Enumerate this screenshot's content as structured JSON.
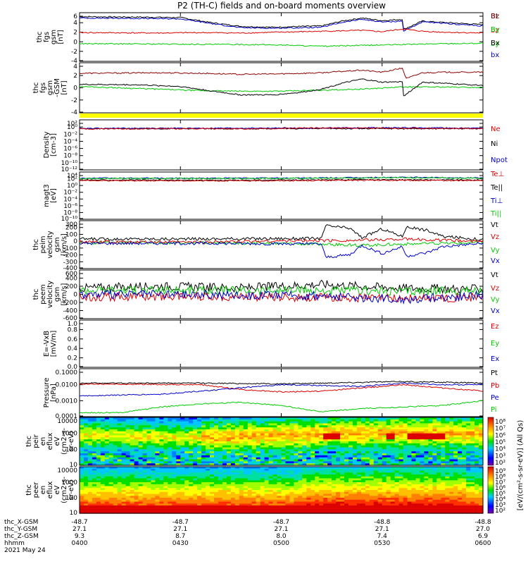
{
  "title": "P2 (TH-C) fields and on-board moments overview",
  "chart_data": [
    {
      "type": "line",
      "ylabel": [
        "thc",
        "fgs",
        "gsm",
        "[nT]"
      ],
      "yticks": [
        "6",
        "4",
        "2",
        "0",
        "-2",
        "-4"
      ],
      "ylim": [
        -4.5,
        6.5
      ],
      "legend": [
        {
          "name": "Bt",
          "color": "#000000"
        },
        {
          "name": "bz",
          "color": "#dd0000"
        },
        {
          "name": "by",
          "color": "#00cc00"
        },
        {
          "name": "bx",
          "color": "#0000cc"
        }
      ],
      "series": [
        {
          "name": "Bt",
          "color": "#000000",
          "t": [
            0,
            0.15,
            0.25,
            0.33,
            0.4,
            0.48,
            0.55,
            0.6,
            0.65,
            0.7,
            0.75,
            0.8,
            0.8,
            0.85,
            0.9,
            1.0
          ],
          "y": [
            5.6,
            5.5,
            5.4,
            4.2,
            3.4,
            3.2,
            3.4,
            3.5,
            4.6,
            5.3,
            4.7,
            5.0,
            2.6,
            4.6,
            4.3,
            3.8
          ]
        },
        {
          "name": "bx",
          "color": "#0000cc",
          "t": [
            0,
            0.15,
            0.25,
            0.33,
            0.4,
            0.48,
            0.55,
            0.6,
            0.65,
            0.7,
            0.75,
            0.8,
            0.8,
            0.85,
            0.9,
            1.0
          ],
          "y": [
            5.3,
            5.2,
            5.1,
            4.0,
            3.1,
            3.0,
            3.1,
            3.2,
            4.3,
            5.0,
            4.4,
            4.6,
            2.2,
            4.4,
            4.1,
            3.5
          ]
        },
        {
          "name": "bz",
          "color": "#dd0000",
          "t": [
            0,
            0.2,
            0.3,
            0.4,
            0.5,
            0.6,
            0.7,
            0.75,
            0.8,
            0.85,
            0.9,
            1.0
          ],
          "y": [
            2.0,
            1.9,
            2.0,
            1.9,
            2.1,
            2.3,
            2.5,
            2.2,
            2.8,
            2.3,
            2.1,
            1.9
          ]
        },
        {
          "name": "by",
          "color": "#00cc00",
          "t": [
            0,
            0.2,
            0.4,
            0.5,
            0.6,
            0.7,
            0.8,
            0.9,
            1.0
          ],
          "y": [
            -0.5,
            -0.6,
            -0.7,
            -0.8,
            -1.1,
            -0.9,
            -0.7,
            -0.5,
            -0.4
          ]
        }
      ]
    },
    {
      "type": "line",
      "ylabel": [
        "thc",
        "fgs",
        "gsm",
        "-GSM",
        "[nT]"
      ],
      "yticks": [
        "4",
        "2",
        "0",
        "-2",
        "-4"
      ],
      "ylim": [
        -5,
        4.5
      ],
      "legend": [
        {
          "name": "Bz",
          "color": "#8b0000"
        },
        {
          "name": "By",
          "color": "#00cc00"
        },
        {
          "name": "Bx",
          "color": "#000000"
        }
      ],
      "series": [
        {
          "name": "Bz",
          "color": "#8b0000",
          "t": [
            0,
            0.2,
            0.3,
            0.4,
            0.5,
            0.6,
            0.7,
            0.75,
            0.8,
            0.81,
            0.85,
            0.9,
            1.0
          ],
          "y": [
            2.5,
            2.6,
            2.5,
            2.3,
            2.4,
            2.6,
            3.1,
            2.7,
            3.5,
            1.5,
            2.6,
            2.7,
            2.7
          ]
        },
        {
          "name": "By",
          "color": "#00cc00",
          "t": [
            0,
            0.15,
            0.3,
            0.4,
            0.5,
            0.6,
            0.7,
            0.8,
            0.9,
            1.0
          ],
          "y": [
            0.0,
            -0.4,
            -0.8,
            -0.9,
            -0.9,
            -0.7,
            -0.5,
            -0.1,
            -0.1,
            -0.2
          ]
        },
        {
          "name": "Bx",
          "color": "#000000",
          "t": [
            0,
            0.15,
            0.25,
            0.33,
            0.4,
            0.48,
            0.55,
            0.6,
            0.65,
            0.7,
            0.75,
            0.8,
            0.8,
            0.85,
            0.9,
            1.0
          ],
          "y": [
            0.4,
            0.3,
            0.0,
            -0.9,
            -1.6,
            -1.6,
            -1.1,
            -0.5,
            0.6,
            1.4,
            0.8,
            0.9,
            -2.0,
            0.8,
            0.6,
            0.2
          ]
        }
      ]
    },
    {
      "type": "line",
      "ylabel": [
        "Density",
        "[cm-3]"
      ],
      "yticks": [
        "10²",
        "10⁰",
        "10⁻²",
        "10⁻⁴",
        "10⁻⁶",
        "10⁻⁸",
        "10⁻¹⁰",
        "10⁻¹²"
      ],
      "ylim": [
        -13,
        3
      ],
      "log": true,
      "legend": [
        {
          "name": "Ne",
          "color": "#dd0000"
        },
        {
          "name": "Ni",
          "color": "#000000"
        },
        {
          "name": "Npot",
          "color": "#0000cc"
        }
      ],
      "series": [
        {
          "name": "Ni",
          "color": "#000000",
          "t": [
            0,
            1
          ],
          "y": [
            0.2,
            0.2
          ]
        },
        {
          "name": "Npot",
          "color": "#0000cc",
          "t": [
            0,
            0.3,
            0.6,
            0.8,
            1
          ],
          "y": [
            0.3,
            0.3,
            0.4,
            0.5,
            0.3
          ]
        },
        {
          "name": "Ne",
          "color": "#dd0000",
          "t": [
            0,
            0.2,
            0.4,
            0.6,
            0.8,
            1
          ],
          "y": [
            0.1,
            0.2,
            0.1,
            0.4,
            0.3,
            0.2
          ]
        }
      ]
    },
    {
      "type": "line",
      "ylabel": [
        "magt3",
        "[eV]"
      ],
      "yticks": [
        "10⁴",
        "10²",
        "10⁰",
        "10⁻²",
        "10⁻⁴",
        "10⁻⁶",
        "10⁻⁸",
        "10⁻¹⁰"
      ],
      "ylim": [
        -11,
        5
      ],
      "log": true,
      "legend": [
        {
          "name": "Te⊥",
          "color": "#dd0000"
        },
        {
          "name": "Te||",
          "color": "#000000"
        },
        {
          "name": "Ti⊥",
          "color": "#0000cc"
        },
        {
          "name": "Ti||",
          "color": "#00cc00"
        }
      ],
      "series": [
        {
          "name": "Ti⊥",
          "color": "#0000cc",
          "t": [
            0,
            0.3,
            0.6,
            0.8,
            1
          ],
          "y": [
            2.9,
            2.9,
            3.0,
            3.2,
            3.0
          ]
        },
        {
          "name": "Ti||",
          "color": "#00cc00",
          "t": [
            0,
            0.3,
            0.6,
            0.8,
            1
          ],
          "y": [
            2.8,
            2.8,
            2.9,
            3.1,
            2.9
          ]
        },
        {
          "name": "Te||",
          "color": "#000000",
          "t": [
            0,
            0.4,
            0.7,
            1
          ],
          "y": [
            2.3,
            2.2,
            2.4,
            2.3
          ]
        },
        {
          "name": "Te⊥",
          "color": "#dd0000",
          "t": [
            0,
            0.4,
            0.7,
            1
          ],
          "y": [
            2.1,
            2.0,
            2.2,
            2.1
          ]
        }
      ]
    },
    {
      "type": "line",
      "ylabel": [
        "thc",
        "peim",
        "velocity",
        "gsm",
        "[km/s]"
      ],
      "yticks": [
        "300",
        "200",
        "100",
        "0",
        "-100",
        "-200",
        "-300",
        "-400"
      ],
      "ylim": [
        -430,
        330
      ],
      "legend": [
        {
          "name": "Vt",
          "color": "#000000"
        },
        {
          "name": "Vz",
          "color": "#dd0000"
        },
        {
          "name": "Vy",
          "color": "#00cc00"
        },
        {
          "name": "Vx",
          "color": "#0000cc"
        }
      ],
      "series": [
        {
          "name": "Vt",
          "color": "#000000",
          "t": [
            0,
            0.3,
            0.6,
            0.61,
            0.67,
            0.7,
            0.75,
            0.8,
            0.81,
            0.86,
            0.9,
            1.0
          ],
          "y": [
            40,
            40,
            50,
            250,
            210,
            60,
            200,
            80,
            230,
            180,
            80,
            30
          ]
        },
        {
          "name": "Vy",
          "color": "#00cc00",
          "t": [
            0,
            0.3,
            0.5,
            0.7,
            0.8,
            0.9,
            1.0
          ],
          "y": [
            -20,
            -20,
            -30,
            -60,
            -40,
            -30,
            -20
          ]
        },
        {
          "name": "Vz",
          "color": "#dd0000",
          "t": [
            0,
            0.3,
            0.5,
            0.7,
            0.8,
            0.9,
            1.0
          ],
          "y": [
            -10,
            -10,
            10,
            20,
            40,
            20,
            0
          ]
        },
        {
          "name": "Vx",
          "color": "#0000cc",
          "t": [
            0,
            0.3,
            0.6,
            0.61,
            0.67,
            0.7,
            0.75,
            0.8,
            0.81,
            0.86,
            0.9,
            1.0
          ],
          "y": [
            -30,
            -30,
            -40,
            -250,
            -210,
            -60,
            -190,
            -80,
            -230,
            -180,
            -80,
            -30
          ]
        }
      ]
    },
    {
      "type": "line",
      "ylabel": [
        "thc",
        "peem",
        "velocity",
        "gsm",
        "[km/s]"
      ],
      "yticks": [
        "600",
        "400",
        "200",
        "0",
        "-200",
        "-400",
        "-600"
      ],
      "ylim": [
        -650,
        620
      ],
      "legend": [
        {
          "name": "Vt",
          "color": "#000000"
        },
        {
          "name": "Vz",
          "color": "#dd0000"
        },
        {
          "name": "Vy",
          "color": "#00cc00"
        },
        {
          "name": "Vx",
          "color": "#0000cc"
        }
      ],
      "series": [
        {
          "name": "Vt",
          "color": "#000000",
          "t": [
            0,
            0.2,
            0.4,
            0.6,
            0.8,
            1.0
          ],
          "y": [
            150,
            200,
            150,
            250,
            150,
            120
          ]
        },
        {
          "name": "Vy",
          "color": "#00cc00",
          "t": [
            0,
            0.3,
            0.6,
            0.8,
            1.0
          ],
          "y": [
            100,
            90,
            80,
            70,
            80
          ]
        },
        {
          "name": "Vz",
          "color": "#dd0000",
          "t": [
            0,
            0.3,
            0.6,
            0.8,
            1.0
          ],
          "y": [
            -80,
            -60,
            -100,
            -120,
            -90
          ]
        },
        {
          "name": "Vx",
          "color": "#0000cc",
          "t": [
            0,
            0.3,
            0.6,
            0.8,
            1.0
          ],
          "y": [
            -20,
            -20,
            -60,
            -150,
            -40
          ]
        }
      ]
    },
    {
      "type": "line",
      "ylabel": [
        "E=-VxB",
        "[mV/m]"
      ],
      "yticks": [
        "1.0",
        "0.8",
        "0.6",
        "0.4",
        "0.2",
        "0.0"
      ],
      "ylim": [
        0,
        1
      ],
      "legend": [
        {
          "name": "Ez",
          "color": "#dd0000"
        },
        {
          "name": "Ey",
          "color": "#00cc00"
        },
        {
          "name": "Ex",
          "color": "#0000cc"
        }
      ],
      "series": []
    },
    {
      "type": "line",
      "ylabel": [
        "Pressure",
        "[nPa]"
      ],
      "yticks": [
        "0.1000",
        "0.0100",
        "0.0010",
        "0.0001"
      ],
      "ylim": [
        -4,
        -1
      ],
      "log": true,
      "legend": [
        {
          "name": "Pt",
          "color": "#000000"
        },
        {
          "name": "Pb",
          "color": "#dd0000"
        },
        {
          "name": "Pe",
          "color": "#0000cc"
        },
        {
          "name": "Pi",
          "color": "#00cc00"
        }
      ],
      "series": [
        {
          "name": "Pt",
          "color": "#000000",
          "t": [
            0,
            0.3,
            0.5,
            0.8,
            1.0
          ],
          "y": [
            -1.9,
            -1.9,
            -1.95,
            -1.8,
            -1.9
          ]
        },
        {
          "name": "Pb",
          "color": "#dd0000",
          "t": [
            0,
            0.3,
            0.4,
            0.5,
            0.6,
            0.7,
            0.8,
            0.9,
            1.0
          ],
          "y": [
            -1.95,
            -2.0,
            -2.3,
            -2.45,
            -2.4,
            -2.2,
            -2.0,
            -2.2,
            -2.4
          ]
        },
        {
          "name": "Pe",
          "color": "#0000cc",
          "t": [
            0,
            0.2,
            0.3,
            0.4,
            0.5,
            0.7,
            0.8,
            0.9,
            1.0
          ],
          "y": [
            -2.7,
            -2.6,
            -2.4,
            -2.2,
            -2.0,
            -2.1,
            -1.9,
            -2.0,
            -2.0
          ]
        },
        {
          "name": "Pi",
          "color": "#00cc00",
          "t": [
            0,
            0.1,
            0.2,
            0.3,
            0.4,
            0.5,
            0.6,
            0.7,
            0.8,
            0.9,
            1.0
          ],
          "y": [
            -3.75,
            -3.75,
            -3.4,
            -3.2,
            -3.1,
            -3.3,
            -3.7,
            -3.5,
            -3.4,
            -3.3,
            -3.0
          ]
        }
      ]
    },
    {
      "type": "heatmap",
      "ylabel": [
        "thc",
        "peir",
        "en",
        "eflux",
        "eV",
        "(cm2-s-",
        "sr-eV)"
      ],
      "yticks": [
        "10000",
        "1000",
        "100",
        "10"
      ],
      "ylim": [
        0.7,
        4.3
      ],
      "log": true,
      "colorbar_ticks": [
        "10⁸",
        "10⁷",
        "10⁶",
        "10⁵",
        "10⁴",
        "10³",
        "10²"
      ],
      "colorbar_label": "[eV/(cm²-s-sr-eV)] (All Qs)"
    },
    {
      "type": "heatmap",
      "ylabel": [
        "thc",
        "peer",
        "en",
        "eflux",
        "eV",
        "(cm2-s-",
        "sr-eV)"
      ],
      "yticks": [
        "10000",
        "1000",
        "100",
        "10"
      ],
      "ylim": [
        0.7,
        4.3
      ],
      "log": true,
      "colorbar_ticks": [
        "10⁹",
        "10⁸",
        "10⁷",
        "10⁶",
        "10⁵",
        "10⁴",
        "10³",
        "10²"
      ],
      "colorbar_label": "[eV/(cm²-s-sr-eV)] (All Qs)"
    }
  ],
  "xaxis": {
    "labels": [
      "thc_X-GSM",
      "thc_Y-GSM",
      "thc_Z-GSM",
      "hhmm",
      "2021 May 24"
    ],
    "rows": [
      [
        "-48.7",
        "-48.7",
        "-48.7",
        "-48.8",
        "-48.8"
      ],
      [
        "27.1",
        "27.1",
        "27.1",
        "27.1",
        "27.0"
      ],
      [
        "9.3",
        "8.7",
        "8.0",
        "7.4",
        "6.9"
      ],
      [
        "0400",
        "0430",
        "0500",
        "0530",
        "0600"
      ]
    ]
  }
}
